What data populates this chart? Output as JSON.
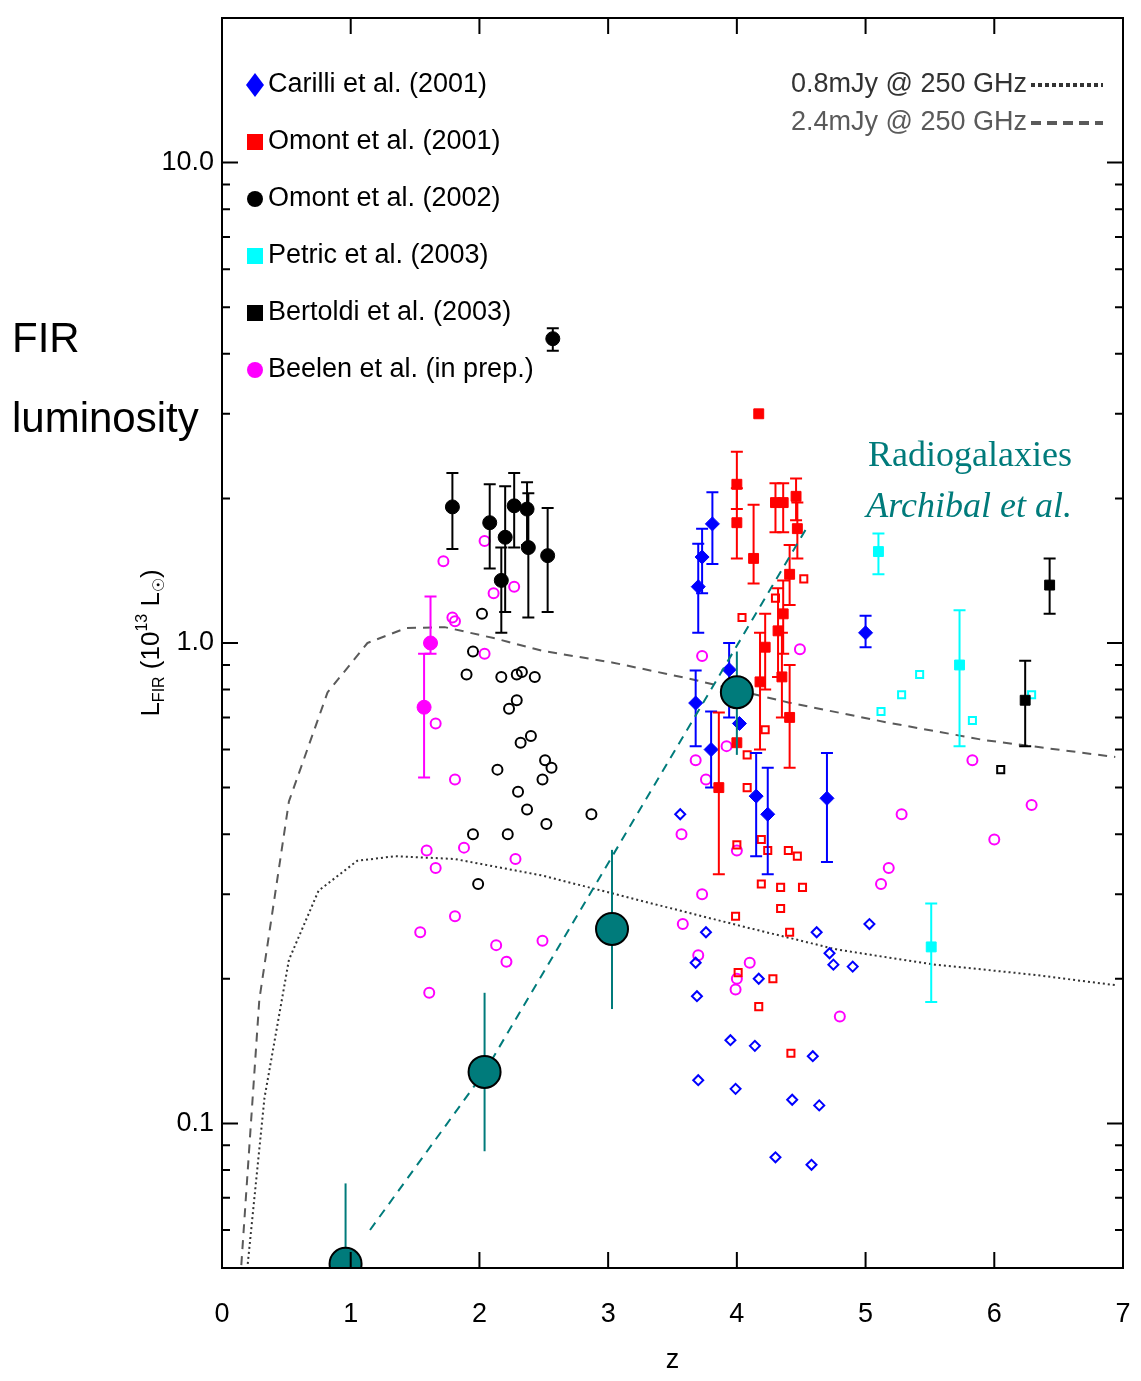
{
  "chart_data": {
    "type": "scatter",
    "xlabel": "z",
    "ylabel": "L$_{FIR}$ (10$^{13}$ L$_{☉}$)",
    "annotations": [
      "FIR luminosity",
      "Radiogalaxies",
      "Archibal et al."
    ],
    "xlim": [
      0,
      7
    ],
    "xticks": [
      0,
      1,
      2,
      3,
      4,
      5,
      6,
      7
    ],
    "ylim": [
      0.05,
      20
    ],
    "log": "y",
    "yticks": [
      {
        "value": 0.06,
        "label": null
      },
      {
        "value": 0.07,
        "label": null
      },
      {
        "value": 0.08,
        "label": null
      },
      {
        "value": 0.09,
        "label": null
      },
      {
        "value": 0.1,
        "label": "0.1"
      },
      {
        "value": 0.2,
        "label": null
      },
      {
        "value": 0.3,
        "label": null
      },
      {
        "value": 0.4,
        "label": null
      },
      {
        "value": 0.5,
        "label": null
      },
      {
        "value": 0.6,
        "label": null
      },
      {
        "value": 0.7,
        "label": null
      },
      {
        "value": 0.8,
        "label": null
      },
      {
        "value": 0.9,
        "label": null
      },
      {
        "value": 1,
        "label": "1.0"
      },
      {
        "value": 2,
        "label": null
      },
      {
        "value": 3,
        "label": null
      },
      {
        "value": 4,
        "label": null
      },
      {
        "value": 5,
        "label": null
      },
      {
        "value": 6,
        "label": null
      },
      {
        "value": 7,
        "label": null
      },
      {
        "value": 8,
        "label": null
      },
      {
        "value": 9,
        "label": null
      },
      {
        "value": 10,
        "label": "10.0"
      },
      {
        "value": 20,
        "label": null
      }
    ],
    "legend": "top",
    "series": [
      {
        "name": "0.8mJy @ 250 GHz",
        "type": "line",
        "color": "#333333",
        "marker": "none",
        "line_style": "dotted",
        "x": [
          0.2,
          0.33,
          0.52,
          0.75,
          1.05,
          1.35,
          1.81,
          2.49,
          3.25,
          4.02,
          4.78,
          5.54,
          6.3,
          6.94
        ],
        "values": [
          0.051,
          0.113,
          0.219,
          0.305,
          0.352,
          0.36,
          0.355,
          0.328,
          0.291,
          0.258,
          0.23,
          0.214,
          0.204,
          0.194
        ]
      },
      {
        "name": "2.4mJy @ 250 GHz",
        "type": "line",
        "color": "#5a5a5a",
        "marker": "none",
        "line_style": "dashed",
        "x": [
          0.15,
          0.29,
          0.52,
          0.82,
          1.13,
          1.43,
          1.73,
          2.11,
          2.49,
          3.03,
          3.63,
          4.4,
          5.16,
          5.92,
          6.94
        ],
        "values": [
          0.0507,
          0.181,
          0.468,
          0.789,
          1.0,
          1.074,
          1.079,
          1.024,
          0.963,
          0.911,
          0.843,
          0.752,
          0.684,
          0.628,
          0.579
        ]
      },
      {
        "color": "#000000",
        "marker": "circle",
        "x": [
          2.02,
          1.95,
          1.9,
          2.17,
          2.29,
          2.33,
          2.43,
          2.23,
          2.29,
          2.32,
          2.4,
          2.51,
          2.56,
          2.49,
          2.14,
          2.3,
          2.37,
          2.52,
          2.87,
          1.95,
          2.22,
          1.99
        ],
        "values": [
          1.15,
          0.96,
          0.86,
          0.85,
          0.86,
          0.87,
          0.85,
          0.73,
          0.76,
          0.62,
          0.64,
          0.57,
          0.55,
          0.52,
          0.545,
          0.49,
          0.45,
          0.42,
          0.44,
          0.4,
          0.4,
          0.315
        ]
      },
      {
        "color": "#000000",
        "marker": "square",
        "x": [
          6.05
        ],
        "values": [
          0.545
        ]
      },
      {
        "color": "#ff00ff",
        "marker": "circle",
        "x": [
          1.72,
          2.04,
          2.11,
          2.27,
          1.79,
          1.81,
          2.04,
          1.66,
          1.81,
          1.59,
          1.66,
          1.88,
          2.28,
          1.54,
          1.81,
          2.13,
          2.21,
          2.49,
          1.61,
          3.73,
          4.49,
          3.92,
          3.68,
          3.76,
          3.57,
          3.73,
          3.58,
          3.7,
          4.1,
          4.0,
          3.99,
          4.0,
          5.28,
          5.18,
          5.12,
          5.83,
          6.0,
          6.29,
          4.8
        ],
        "values": [
          1.48,
          1.63,
          1.27,
          1.31,
          1.13,
          1.11,
          0.95,
          0.68,
          0.52,
          0.37,
          0.34,
          0.375,
          0.355,
          0.25,
          0.27,
          0.235,
          0.217,
          0.24,
          0.187,
          0.94,
          0.97,
          0.61,
          0.57,
          0.52,
          0.4,
          0.3,
          0.26,
          0.224,
          0.216,
          0.2,
          0.19,
          0.37,
          0.44,
          0.34,
          0.315,
          0.57,
          0.39,
          0.46,
          0.167
        ]
      },
      {
        "color": "#00ffff",
        "marker": "square",
        "x": [
          5.12,
          5.28,
          5.42,
          5.83,
          6.29
        ],
        "values": [
          0.72,
          0.78,
          0.86,
          0.69,
          0.78
        ]
      },
      {
        "color": "#0000ff",
        "marker": "diamond",
        "x": [
          3.76,
          3.68,
          3.69,
          4.17,
          3.95,
          4.14,
          3.7,
          3.99,
          4.59,
          4.43,
          4.64,
          4.3,
          4.58,
          4.62,
          4.72,
          4.75,
          4.9,
          5.03,
          3.56
        ],
        "values": [
          0.25,
          0.216,
          0.184,
          0.2,
          0.149,
          0.145,
          0.123,
          0.118,
          0.138,
          0.112,
          0.109,
          0.085,
          0.082,
          0.25,
          0.226,
          0.214,
          0.212,
          0.26,
          0.44
        ]
      },
      {
        "color": "#ff0000",
        "marker": "square",
        "x": [
          4.0,
          4.19,
          4.24,
          4.4,
          4.47,
          4.19,
          4.34,
          4.51,
          4.34,
          4.41,
          3.99,
          4.01,
          4.28,
          4.17,
          4.42,
          4.52,
          4.04,
          4.3,
          4.22,
          4.08,
          4.08
        ],
        "values": [
          0.38,
          0.39,
          0.37,
          0.37,
          0.36,
          0.315,
          0.31,
          0.31,
          0.28,
          0.25,
          0.27,
          0.206,
          0.2,
          0.175,
          0.14,
          1.36,
          1.13,
          1.24,
          0.66,
          0.585,
          0.5
        ]
      },
      {
        "name": "Carilli et al. (2001)",
        "color": "#0000ff",
        "marker": "diamond",
        "x": [
          3.81,
          3.73,
          3.7,
          3.68,
          3.8,
          3.94,
          4.02,
          4.15,
          4.24,
          4.7,
          5.0
        ],
        "values": [
          1.77,
          1.51,
          1.31,
          0.75,
          0.6,
          0.88,
          0.68,
          0.48,
          0.44,
          0.475,
          1.05
        ],
        "errors": [
          [
            1.46,
            2.06
          ],
          [
            1.27,
            1.73
          ],
          [
            1.05,
            1.61
          ],
          [
            0.61,
            0.876
          ],
          [
            0.5,
            0.72
          ],
          [
            0.7,
            1.0
          ],
          null,
          [
            0.36,
            0.59
          ],
          [
            0.33,
            0.55
          ],
          [
            0.35,
            0.59
          ],
          [
            0.98,
            1.14
          ]
        ]
      },
      {
        "name": "Omont et al. (2001)",
        "color": "#ff0000",
        "marker": "square",
        "x": [
          4.17,
          4.0,
          4.0,
          4.13,
          4.3,
          4.36,
          4.46,
          4.47,
          4.41,
          4.36,
          4.32,
          4.22,
          4.35,
          4.18,
          4.41,
          3.86,
          4.0
        ],
        "values": [
          3.0,
          2.14,
          1.78,
          1.5,
          1.96,
          1.96,
          2.02,
          1.73,
          1.39,
          1.15,
          1.06,
          0.98,
          0.85,
          0.83,
          0.7,
          0.5,
          0.62
        ],
        "errors": [
          null,
          [
            1.9,
            2.5
          ],
          [
            1.5,
            2.1
          ],
          [
            1.33,
            1.94
          ],
          [
            1.7,
            2.15
          ],
          [
            1.7,
            2.15
          ],
          [
            1.8,
            2.2
          ],
          [
            1.5,
            1.96
          ],
          [
            1.2,
            1.6
          ],
          [
            0.95,
            1.35
          ],
          [
            0.85,
            1.3
          ],
          [
            0.8,
            1.15
          ],
          [
            0.7,
            1.05
          ],
          [
            0.6,
            1.05
          ],
          [
            0.55,
            0.9
          ],
          [
            0.33,
            0.717
          ],
          null
        ]
      },
      {
        "name": "Omont et al. (2002)",
        "color": "#000000",
        "marker": "circle",
        "x": [
          1.79,
          2.08,
          2.2,
          2.27,
          2.37,
          2.38,
          2.53,
          2.17,
          2.57
        ],
        "values": [
          1.92,
          1.78,
          1.66,
          1.93,
          1.9,
          1.58,
          1.52,
          1.35,
          4.3
        ],
        "errors": [
          [
            1.57,
            2.26
          ],
          [
            1.43,
            2.14
          ],
          [
            1.16,
            2.12
          ],
          [
            1.58,
            2.26
          ],
          [
            1.6,
            2.16
          ],
          [
            1.13,
            2.05
          ],
          [
            1.16,
            1.91
          ],
          [
            1.05,
            1.58
          ],
          [
            4.06,
            4.52
          ]
        ]
      },
      {
        "name": "Petric et al. (2003)",
        "color": "#00ffff",
        "marker": "square",
        "x": [
          5.1,
          5.73,
          5.51
        ],
        "values": [
          1.55,
          0.9,
          0.233
        ],
        "errors": [
          [
            1.39,
            1.69
          ],
          [
            0.61,
            1.17
          ],
          [
            0.179,
            0.287
          ]
        ]
      },
      {
        "name": "Bertoldi et al. (2003)",
        "color": "#000000",
        "marker": "square",
        "x": [
          6.43,
          6.24
        ],
        "values": [
          1.32,
          0.76
        ],
        "errors": [
          [
            1.15,
            1.5
          ],
          [
            0.61,
            0.918
          ]
        ]
      },
      {
        "name": "Beelen et al. (in prep.)",
        "color": "#ff00ff",
        "marker": "circle",
        "x": [
          1.62,
          1.57
        ],
        "values": [
          1.0,
          0.735
        ],
        "errors": [
          [
            0.95,
            1.25
          ],
          [
            0.525,
            0.95
          ]
        ]
      },
      {
        "type": "line",
        "color": "#007b7b",
        "marker": "none",
        "line_style": "dashed",
        "x": [
          1.15,
          2.04,
          4.55
        ],
        "values": [
          0.06,
          0.128,
          1.75
        ]
      },
      {
        "color": "#007b7b",
        "marker": "circle",
        "x": [
          0.96,
          2.04,
          3.03,
          4.0
        ],
        "values": [
          0.051,
          0.128,
          0.254,
          0.79
        ],
        "errors": [
          [
            0.05,
            0.075
          ],
          [
            0.0875,
            0.187
          ],
          [
            0.173,
            0.371
          ],
          [
            0.585,
            0.96
          ]
        ]
      }
    ]
  }
}
